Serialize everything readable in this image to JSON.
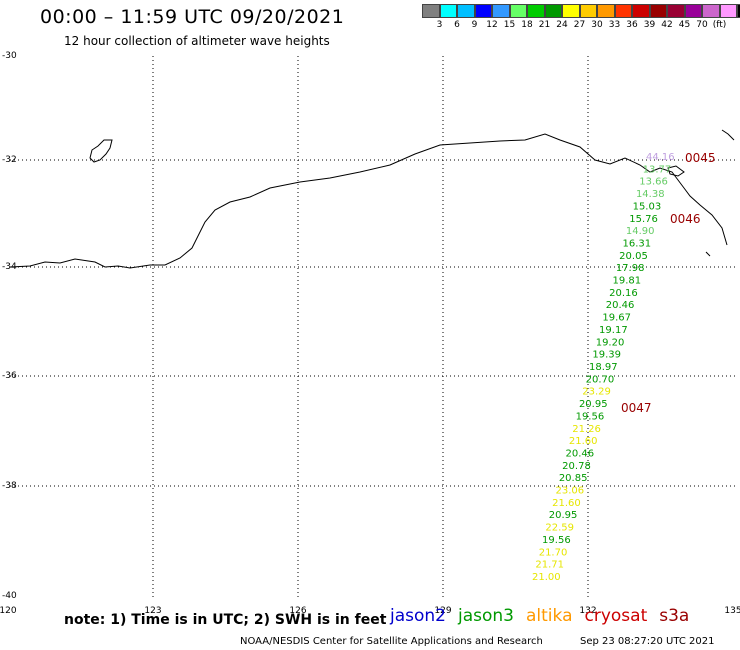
{
  "header": {
    "title": "00:00 – 11:59 UTC 09/20/2021",
    "subtitle": "12 hour collection of altimeter wave heights"
  },
  "scale": {
    "colors": [
      "#808080",
      "#00ffff",
      "#00bfff",
      "#0000ff",
      "#3399ff",
      "#66ff66",
      "#00cc00",
      "#009900",
      "#ffff00",
      "#ffcc00",
      "#ff9900",
      "#ff3300",
      "#cc0000",
      "#990000",
      "#990033",
      "#990099",
      "#cc66cc",
      "#ff99ff",
      "#000000"
    ],
    "labels": [
      "3",
      "6",
      "9",
      "12",
      "15",
      "18",
      "21",
      "24",
      "27",
      "30",
      "33",
      "36",
      "39",
      "42",
      "45",
      "70",
      "(ft)"
    ]
  },
  "axes": {
    "lat_labels": [
      "-30",
      "-32",
      "-34",
      "-36",
      "-38",
      "-40"
    ],
    "lon_labels": [
      "120",
      "123",
      "126",
      "129",
      "132",
      "135"
    ]
  },
  "wave_points": [
    {
      "v": "44.16",
      "c": "#c0a0e0"
    },
    {
      "v": "13.77",
      "c": "#66cc66"
    },
    {
      "v": "13.66",
      "c": "#66cc66"
    },
    {
      "v": "14.38",
      "c": "#66cc66"
    },
    {
      "v": "15.03",
      "c": "#009900"
    },
    {
      "v": "15.76",
      "c": "#009900"
    },
    {
      "v": "14.90",
      "c": "#66cc66"
    },
    {
      "v": "16.31",
      "c": "#009900"
    },
    {
      "v": "20.05",
      "c": "#009900"
    },
    {
      "v": "17.98",
      "c": "#009900"
    },
    {
      "v": "19.81",
      "c": "#009900"
    },
    {
      "v": "20.16",
      "c": "#009900"
    },
    {
      "v": "20.46",
      "c": "#009900"
    },
    {
      "v": "19.67",
      "c": "#009900"
    },
    {
      "v": "19.17",
      "c": "#009900"
    },
    {
      "v": "19.20",
      "c": "#009900"
    },
    {
      "v": "19.39",
      "c": "#009900"
    },
    {
      "v": "18.97",
      "c": "#009900"
    },
    {
      "v": "20.70",
      "c": "#009900"
    },
    {
      "v": "23.29",
      "c": "#e6e600"
    },
    {
      "v": "20.95",
      "c": "#009900"
    },
    {
      "v": "19.56",
      "c": "#009900"
    },
    {
      "v": "21.26",
      "c": "#e6e600"
    },
    {
      "v": "21.60",
      "c": "#e6e600"
    },
    {
      "v": "20.46",
      "c": "#009900"
    },
    {
      "v": "20.78",
      "c": "#009900"
    },
    {
      "v": "20.85",
      "c": "#009900"
    },
    {
      "v": "23.06",
      "c": "#e6e600"
    },
    {
      "v": "21.60",
      "c": "#e6e600"
    },
    {
      "v": "20.95",
      "c": "#009900"
    },
    {
      "v": "22.59",
      "c": "#e6e600"
    },
    {
      "v": "19.56",
      "c": "#009900"
    },
    {
      "v": "21.70",
      "c": "#e6e600"
    },
    {
      "v": "21.71",
      "c": "#e6e600"
    },
    {
      "v": "21.00",
      "c": "#e6e600"
    }
  ],
  "time_tags": [
    "0045",
    "0046",
    "0047"
  ],
  "footer": {
    "note": "note: 1) Time is in UTC; 2) SWH is in feet",
    "satellites": [
      {
        "name": "jason2",
        "color": "#0000cc"
      },
      {
        "name": "jason3",
        "color": "#009900"
      },
      {
        "name": "altika",
        "color": "#ff9900"
      },
      {
        "name": "cryosat",
        "color": "#cc0000"
      },
      {
        "name": "s3a",
        "color": "#990000"
      }
    ],
    "credit": "NOAA/NESDIS Center for Satellite Applications and Research",
    "timestamp": "Sep 23 08:27:20 UTC 2021"
  }
}
